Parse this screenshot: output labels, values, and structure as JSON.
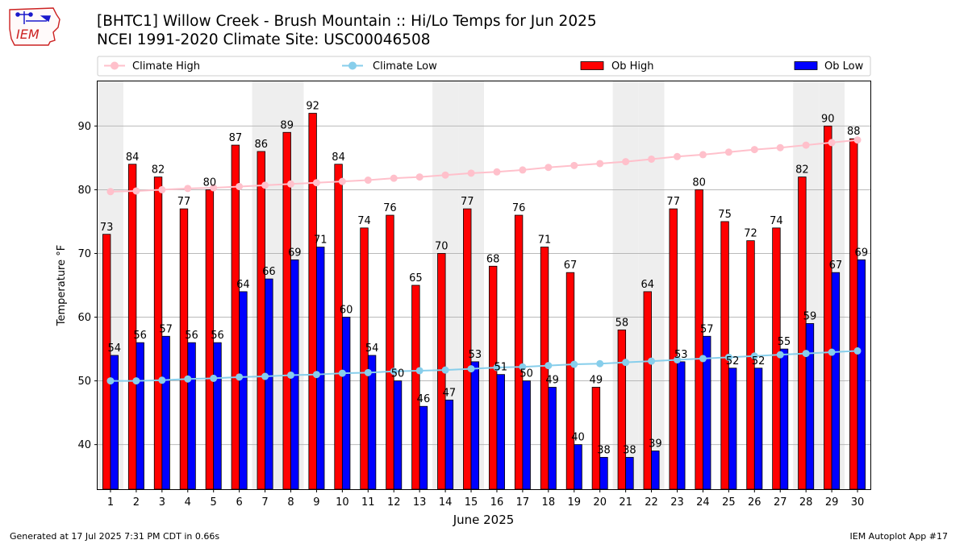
{
  "header": {
    "title_line1": "[BHTC1] Willow Creek - Brush Mountain :: Hi/Lo Temps for Jun 2025",
    "title_line2": "NCEI 1991-2020 Climate Site: USC00046508",
    "logo_text": "IEM"
  },
  "footer": {
    "generated": "Generated at 17 Jul 2025 7:31 PM CDT in 0.66s",
    "app": "IEM Autoplot App #17"
  },
  "colors": {
    "ob_high": "#ff0000",
    "ob_low": "#0000ff",
    "climate_high": "#ffc0cb",
    "climate_low": "#87ceeb",
    "weekend_shade": "#eeeeee",
    "grid": "#b0b0b0"
  },
  "chart_data": {
    "type": "bar",
    "xlabel": "June 2025",
    "ylabel": "Temperature °F",
    "ylim": [
      33,
      97
    ],
    "yticks": [
      40,
      50,
      60,
      70,
      80,
      90
    ],
    "grid": "horizontal",
    "legend_position": "top",
    "categories": [
      "1",
      "2",
      "3",
      "4",
      "5",
      "6",
      "7",
      "8",
      "9",
      "10",
      "11",
      "12",
      "13",
      "14",
      "15",
      "16",
      "17",
      "18",
      "19",
      "20",
      "21",
      "22",
      "23",
      "24",
      "25",
      "26",
      "27",
      "28",
      "29",
      "30"
    ],
    "shaded_days": [
      1,
      7,
      8,
      14,
      15,
      21,
      22,
      28,
      29
    ],
    "series": [
      {
        "name": "Ob High",
        "kind": "bar",
        "values": [
          73,
          84,
          82,
          77,
          80,
          87,
          86,
          89,
          92,
          84,
          74,
          76,
          65,
          70,
          77,
          68,
          76,
          71,
          67,
          49,
          58,
          64,
          77,
          80,
          75,
          72,
          74,
          82,
          90,
          88
        ]
      },
      {
        "name": "Ob Low",
        "kind": "bar",
        "values": [
          54,
          56,
          57,
          56,
          56,
          64,
          66,
          69,
          71,
          60,
          54,
          50,
          46,
          47,
          53,
          51,
          50,
          49,
          40,
          38,
          38,
          39,
          53,
          57,
          52,
          52,
          55,
          59,
          67,
          69
        ]
      },
      {
        "name": "Climate High",
        "kind": "line",
        "values": [
          79.7,
          79.8,
          80.0,
          80.2,
          80.3,
          80.5,
          80.7,
          80.9,
          81.1,
          81.3,
          81.5,
          81.8,
          82.0,
          82.3,
          82.6,
          82.8,
          83.1,
          83.5,
          83.8,
          84.1,
          84.4,
          84.8,
          85.2,
          85.5,
          85.9,
          86.3,
          86.6,
          87.0,
          87.4,
          87.8
        ]
      },
      {
        "name": "Climate Low",
        "kind": "line",
        "values": [
          50.0,
          50.0,
          50.1,
          50.3,
          50.4,
          50.6,
          50.7,
          50.9,
          51.0,
          51.2,
          51.3,
          51.5,
          51.6,
          51.7,
          51.9,
          52.1,
          52.2,
          52.4,
          52.6,
          52.7,
          52.9,
          53.1,
          53.3,
          53.5,
          53.7,
          53.9,
          54.1,
          54.3,
          54.5,
          54.7
        ]
      }
    ]
  }
}
